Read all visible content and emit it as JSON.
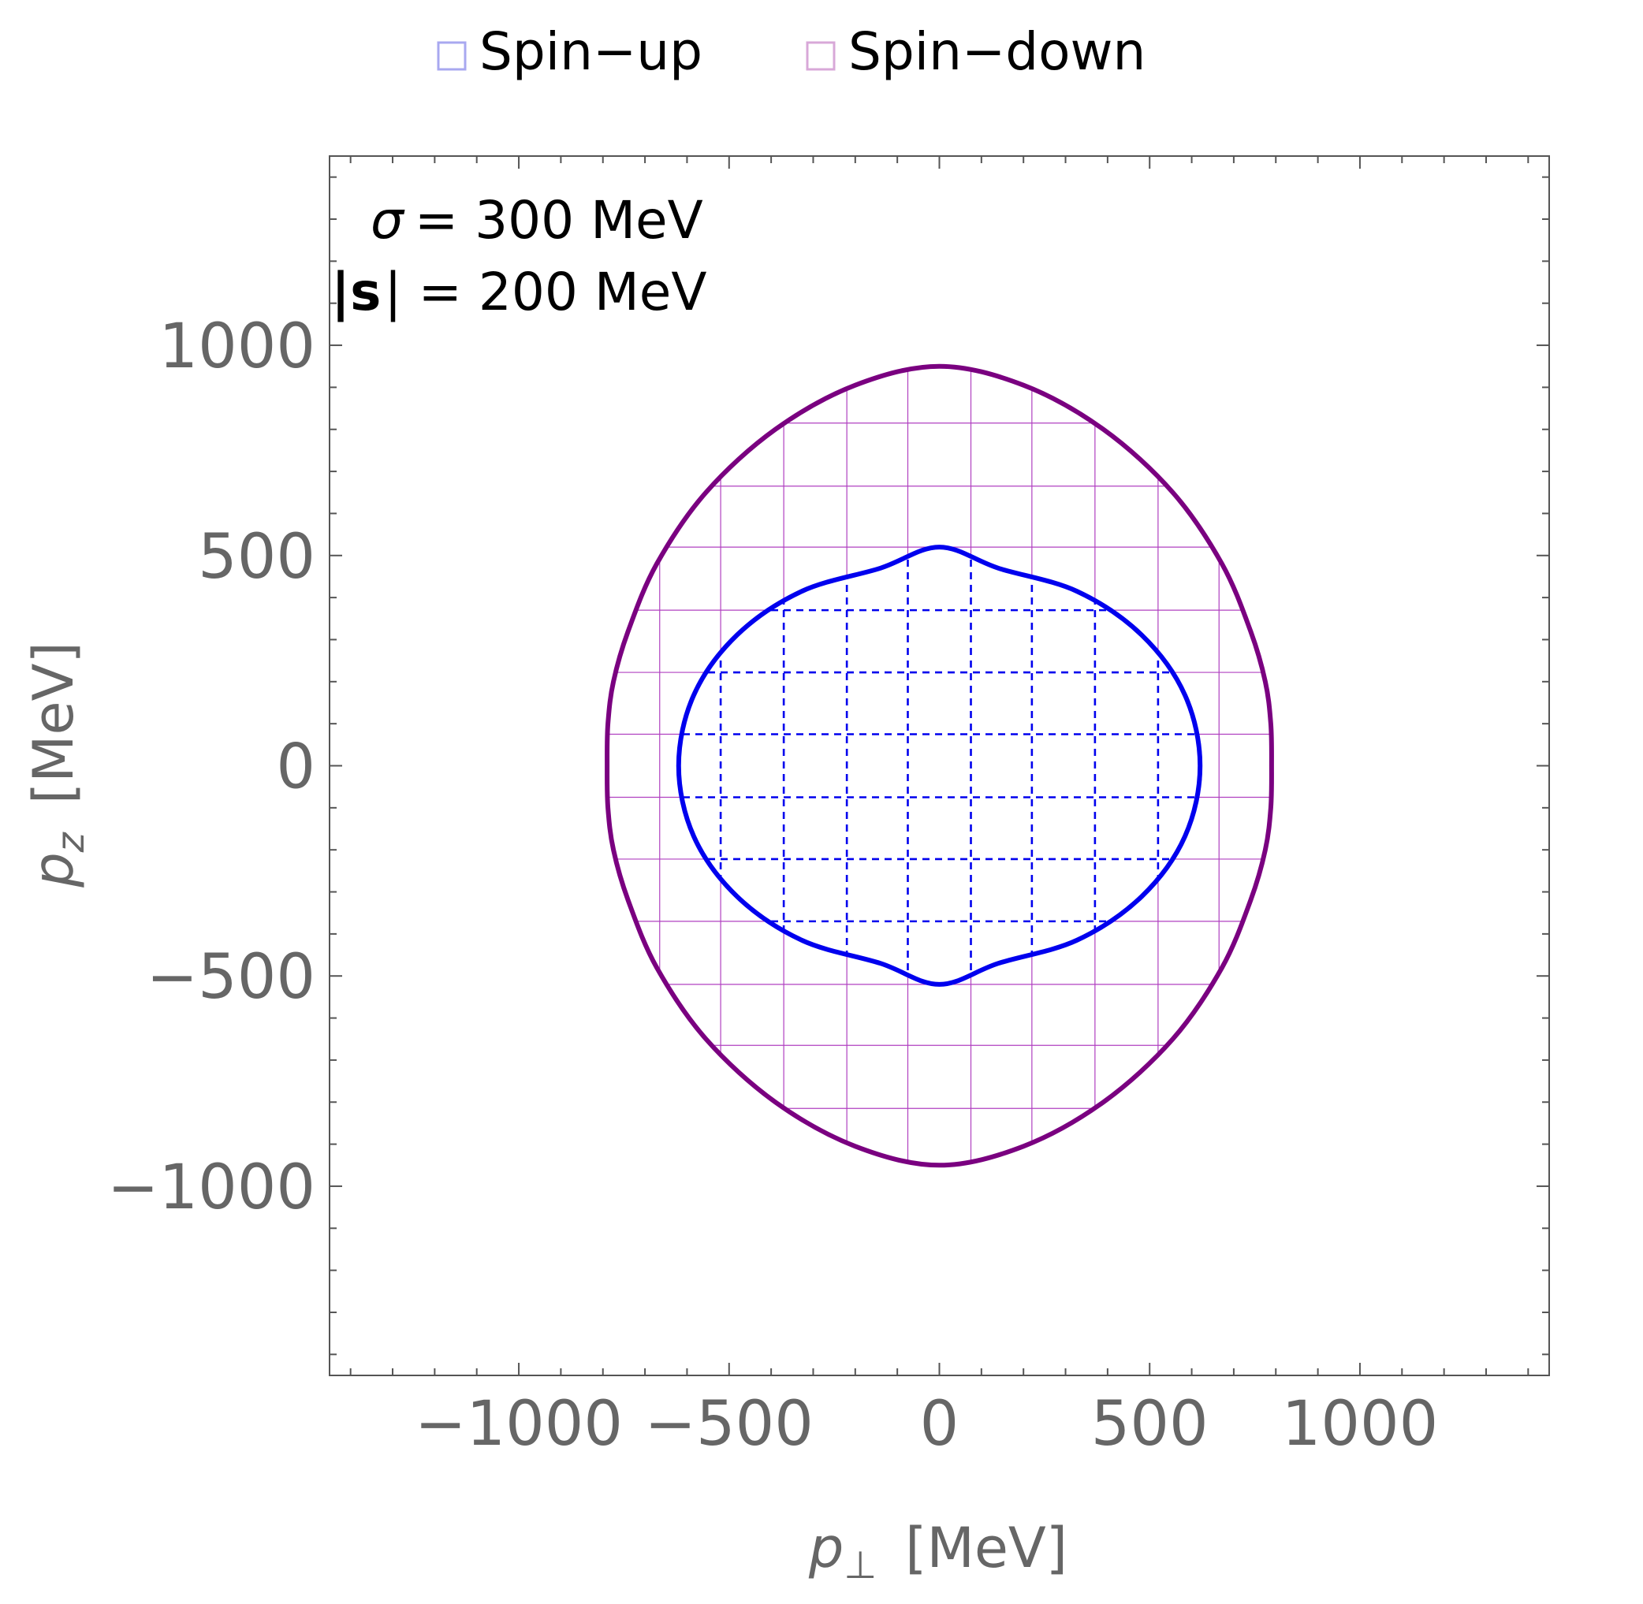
{
  "legend": {
    "items": [
      {
        "label": "Spin−up",
        "color": "#a8a8f0"
      },
      {
        "label": "Spin−down",
        "color": "#d8a8d8"
      }
    ],
    "placement": "top-center"
  },
  "annotation": {
    "sigma_symbol": "σ",
    "sigma_value": "= 300 MeV",
    "s_bar": "|",
    "s_symbol": "s",
    "s_value": "| = 200 MeV"
  },
  "axes": {
    "x_label_var": "p",
    "x_label_sub": "⊥",
    "x_label_unit": "[MeV]",
    "y_label_var": "p",
    "y_label_sub": "z",
    "y_label_unit": "[MeV]"
  },
  "colors": {
    "spin_up_curve": "#0000ee",
    "spin_down_curve": "#7a0080",
    "spin_down_mesh": "#b040c0",
    "tick_label": "#666666",
    "frame": "#555555"
  },
  "chart_data": {
    "type": "line",
    "xlim": [
      -1450,
      1450
    ],
    "ylim": [
      -1450,
      1450
    ],
    "grid": false,
    "xticks": [
      -1000,
      -500,
      0,
      500,
      1000
    ],
    "yticks": [
      -1000,
      -500,
      0,
      500,
      1000
    ],
    "xtick_labels": [
      "−1000",
      "−500",
      "0",
      "500",
      "1000"
    ],
    "ytick_labels": [
      "−1000",
      "−500",
      "0",
      "500",
      "1000"
    ],
    "series": [
      {
        "name": "Spin−up",
        "shape": "closed-contour",
        "x": [
          620,
          584,
          481,
          327,
          140,
          0,
          -140,
          -327,
          -481,
          -584,
          -620,
          -584,
          -481,
          -327,
          -140,
          0,
          140,
          327,
          481,
          584,
          620
        ],
        "y": [
          0,
          168,
          311,
          415,
          470,
          520,
          470,
          415,
          311,
          168,
          0,
          -168,
          -311,
          -415,
          -470,
          -520,
          -470,
          -415,
          -311,
          -168,
          0
        ],
        "mesh_x": [
          -520,
          -370,
          -220,
          -75,
          75,
          220,
          370,
          520
        ],
        "mesh_y": [
          -370,
          -222,
          -75,
          75,
          222,
          370
        ]
      },
      {
        "name": "Spin−down",
        "shape": "closed-contour",
        "x": [
          790,
          788,
          775,
          740,
          672,
          555,
          390,
          200,
          0,
          -200,
          -390,
          -555,
          -672,
          -740,
          -775,
          -788,
          -790,
          -788,
          -775,
          -740,
          -672,
          -555,
          -390,
          -200,
          0,
          200,
          390,
          555,
          672,
          740,
          775,
          788,
          790
        ],
        "y": [
          0,
          100,
          200,
          320,
          480,
          650,
          800,
          905,
          950,
          905,
          800,
          650,
          480,
          320,
          200,
          100,
          0,
          -100,
          -200,
          -320,
          -480,
          -650,
          -800,
          -905,
          -950,
          -905,
          -800,
          -650,
          -480,
          -320,
          -200,
          -100,
          0
        ],
        "mesh_x": [
          -665,
          -520,
          -370,
          -220,
          -75,
          75,
          220,
          370,
          520,
          665
        ],
        "mesh_y": [
          -815,
          -665,
          -520,
          -370,
          -222,
          -75,
          75,
          222,
          370,
          520,
          665,
          815
        ]
      }
    ]
  }
}
